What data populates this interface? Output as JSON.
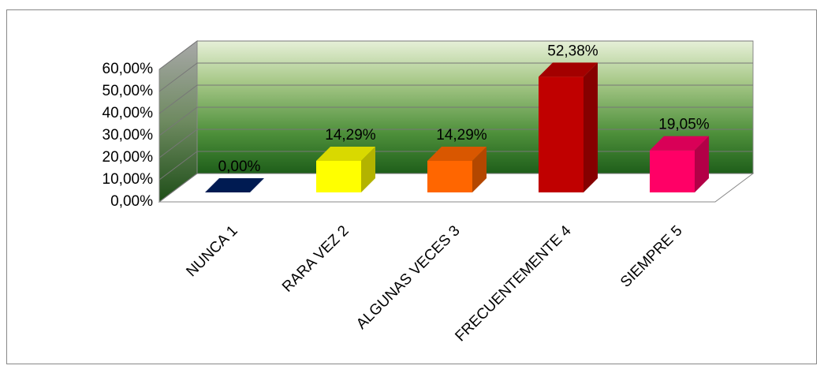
{
  "chart_data": {
    "type": "bar3d",
    "categories": [
      "NUNCA 1",
      "RARA VEZ 2",
      "ALGUNAS VECES 3",
      "FRECUENTEMENTE 4",
      "SIEMPRE 5"
    ],
    "values": [
      0,
      14.29,
      14.29,
      52.38,
      19.05
    ],
    "value_labels": [
      "0,00%",
      "14,29%",
      "14,29%",
      "52,38%",
      "19,05%"
    ],
    "colors": [
      "#002060",
      "#ffff00",
      "#ff6600",
      "#c00000",
      "#ff0066"
    ],
    "ylim": [
      0,
      60
    ],
    "yticks": [
      {
        "value": 0,
        "label": "0,00%"
      },
      {
        "value": 10,
        "label": "10,00%"
      },
      {
        "value": 20,
        "label": "20,00%"
      },
      {
        "value": 30,
        "label": "30,00%"
      },
      {
        "value": 40,
        "label": "40,00%"
      },
      {
        "value": 50,
        "label": "50,00%"
      },
      {
        "value": 60,
        "label": "60,00%"
      }
    ],
    "grid": true
  }
}
